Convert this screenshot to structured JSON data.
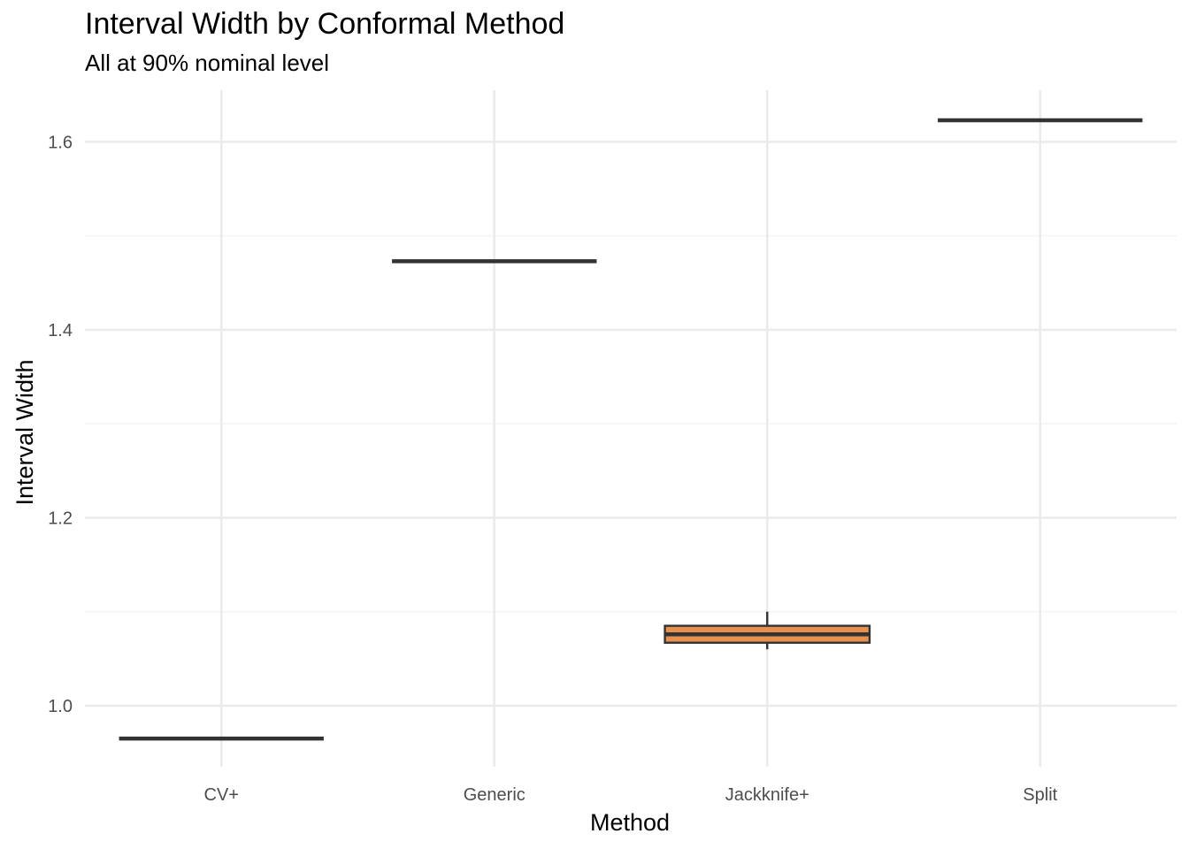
{
  "chart_data": {
    "type": "boxplot",
    "title": "Interval Width by Conformal Method",
    "subtitle": "All at 90% nominal level",
    "xlabel": "Method",
    "ylabel": "Interval Width",
    "categories": [
      "CV+",
      "Generic",
      "Jackknife+",
      "Split"
    ],
    "boxes": [
      {
        "category": "CV+",
        "min": 0.965,
        "q1": 0.965,
        "median": 0.965,
        "q3": 0.965,
        "max": 0.965
      },
      {
        "category": "Generic",
        "min": 1.473,
        "q1": 1.473,
        "median": 1.473,
        "q3": 1.473,
        "max": 1.473
      },
      {
        "category": "Jackknife+",
        "min": 1.06,
        "q1": 1.067,
        "median": 1.076,
        "q3": 1.085,
        "max": 1.1
      },
      {
        "category": "Split",
        "min": 1.623,
        "q1": 1.623,
        "median": 1.623,
        "q3": 1.623,
        "max": 1.623
      }
    ],
    "yticks": [
      1.0,
      1.2,
      1.4,
      1.6
    ],
    "ytick_labels": [
      "1.0",
      "1.2",
      "1.4",
      "1.6"
    ],
    "ylim": [
      0.935,
      1.655
    ],
    "grid": true,
    "legend": "none",
    "colors": {
      "box_fill": "#E8914F",
      "box_line": "#333333",
      "grid_major": "#EBEBEB",
      "grid_minor": "#F5F5F5"
    }
  }
}
